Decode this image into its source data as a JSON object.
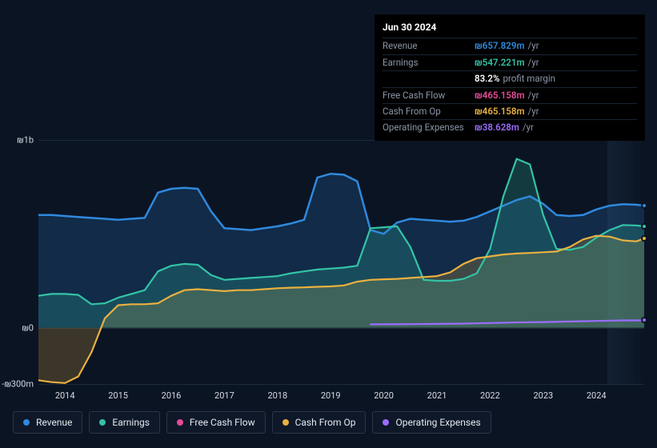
{
  "tooltip": {
    "date": "Jun 30 2024",
    "rows": [
      {
        "label": "Revenue",
        "value": "₪657.829m",
        "unit": "/yr",
        "color": "#2f89dd"
      },
      {
        "label": "Earnings",
        "value": "₪547.221m",
        "unit": "/yr",
        "color": "#34c3a6"
      },
      {
        "label": "",
        "value": "83.2%",
        "unit": "profit margin",
        "color": "#ffffff"
      },
      {
        "label": "Free Cash Flow",
        "value": "₪465.158m",
        "unit": "/yr",
        "color": "#e84a9a"
      },
      {
        "label": "Cash From Op",
        "value": "₪465.158m",
        "unit": "/yr",
        "color": "#eab040"
      },
      {
        "label": "Operating Expenses",
        "value": "₪38.628m",
        "unit": "/yr",
        "color": "#9a6dff"
      }
    ]
  },
  "chart": {
    "type": "area",
    "background_color": "#0b1423",
    "grid_color": "#1d2a3e",
    "y_axis": {
      "min": -300,
      "max": 1000,
      "ticks": [
        {
          "v": 1000,
          "label": "₪1b"
        },
        {
          "v": 0,
          "label": "₪0"
        },
        {
          "v": -300,
          "label": "-₪300m"
        }
      ]
    },
    "x_axis": {
      "min": 2013.5,
      "max": 2024.9,
      "ticks": [
        {
          "v": 2014,
          "label": "2014"
        },
        {
          "v": 2015,
          "label": "2015"
        },
        {
          "v": 2016,
          "label": "2016"
        },
        {
          "v": 2017,
          "label": "2017"
        },
        {
          "v": 2018,
          "label": "2018"
        },
        {
          "v": 2019,
          "label": "2019"
        },
        {
          "v": 2020,
          "label": "2020"
        },
        {
          "v": 2021,
          "label": "2021"
        },
        {
          "v": 2022,
          "label": "2022"
        },
        {
          "v": 2023,
          "label": "2023"
        },
        {
          "v": 2024,
          "label": "2024"
        }
      ]
    },
    "future_start": 2024.2,
    "series": [
      {
        "key": "revenue",
        "label": "Revenue",
        "color": "#2f89dd",
        "fill_opacity": 0.2,
        "line_width": 2.5,
        "area": true,
        "points": [
          [
            2013.5,
            600
          ],
          [
            2013.75,
            600
          ],
          [
            2014.0,
            595
          ],
          [
            2014.25,
            590
          ],
          [
            2014.5,
            585
          ],
          [
            2014.75,
            580
          ],
          [
            2015.0,
            575
          ],
          [
            2015.25,
            580
          ],
          [
            2015.5,
            585
          ],
          [
            2015.75,
            720
          ],
          [
            2016.0,
            740
          ],
          [
            2016.25,
            745
          ],
          [
            2016.5,
            740
          ],
          [
            2016.75,
            620
          ],
          [
            2017.0,
            530
          ],
          [
            2017.25,
            525
          ],
          [
            2017.5,
            520
          ],
          [
            2017.75,
            530
          ],
          [
            2018.0,
            540
          ],
          [
            2018.25,
            555
          ],
          [
            2018.5,
            575
          ],
          [
            2018.75,
            800
          ],
          [
            2019.0,
            820
          ],
          [
            2019.25,
            815
          ],
          [
            2019.5,
            780
          ],
          [
            2019.75,
            520
          ],
          [
            2020.0,
            500
          ],
          [
            2020.25,
            560
          ],
          [
            2020.5,
            580
          ],
          [
            2020.75,
            575
          ],
          [
            2021.0,
            570
          ],
          [
            2021.25,
            565
          ],
          [
            2021.5,
            570
          ],
          [
            2021.75,
            590
          ],
          [
            2022.0,
            620
          ],
          [
            2022.25,
            650
          ],
          [
            2022.5,
            680
          ],
          [
            2022.75,
            700
          ],
          [
            2023.0,
            660
          ],
          [
            2023.25,
            600
          ],
          [
            2023.5,
            595
          ],
          [
            2023.75,
            600
          ],
          [
            2024.0,
            630
          ],
          [
            2024.25,
            650
          ],
          [
            2024.5,
            658
          ],
          [
            2024.75,
            655
          ],
          [
            2024.9,
            650
          ]
        ],
        "end_dot": true
      },
      {
        "key": "earnings",
        "label": "Earnings",
        "color": "#34c3a6",
        "fill_opacity": 0.22,
        "line_width": 2.2,
        "area": true,
        "points": [
          [
            2013.5,
            170
          ],
          [
            2013.75,
            180
          ],
          [
            2014.0,
            180
          ],
          [
            2014.25,
            175
          ],
          [
            2014.5,
            125
          ],
          [
            2014.75,
            130
          ],
          [
            2015.0,
            160
          ],
          [
            2015.25,
            180
          ],
          [
            2015.5,
            200
          ],
          [
            2015.75,
            300
          ],
          [
            2016.0,
            330
          ],
          [
            2016.25,
            340
          ],
          [
            2016.5,
            335
          ],
          [
            2016.75,
            280
          ],
          [
            2017.0,
            255
          ],
          [
            2017.25,
            260
          ],
          [
            2017.5,
            265
          ],
          [
            2017.75,
            270
          ],
          [
            2018.0,
            275
          ],
          [
            2018.25,
            290
          ],
          [
            2018.5,
            300
          ],
          [
            2018.75,
            310
          ],
          [
            2019.0,
            315
          ],
          [
            2019.25,
            320
          ],
          [
            2019.5,
            330
          ],
          [
            2019.75,
            530
          ],
          [
            2020.0,
            535
          ],
          [
            2020.25,
            540
          ],
          [
            2020.5,
            430
          ],
          [
            2020.75,
            255
          ],
          [
            2021.0,
            250
          ],
          [
            2021.25,
            250
          ],
          [
            2021.5,
            260
          ],
          [
            2021.75,
            290
          ],
          [
            2022.0,
            420
          ],
          [
            2022.25,
            700
          ],
          [
            2022.5,
            900
          ],
          [
            2022.75,
            870
          ],
          [
            2023.0,
            600
          ],
          [
            2023.25,
            420
          ],
          [
            2023.5,
            415
          ],
          [
            2023.75,
            430
          ],
          [
            2024.0,
            480
          ],
          [
            2024.25,
            520
          ],
          [
            2024.5,
            547
          ],
          [
            2024.75,
            545
          ],
          [
            2024.9,
            540
          ]
        ],
        "end_dot": true
      },
      {
        "key": "fcf",
        "label": "Free Cash Flow",
        "color": "#e84a9a",
        "fill_opacity": 0.0,
        "line_width": 2.2,
        "area": false,
        "points": [
          [
            2019.75,
            20
          ],
          [
            2020.0,
            20
          ],
          [
            2020.5,
            20
          ],
          [
            2021.0,
            20
          ],
          [
            2021.5,
            20
          ],
          [
            2022.0,
            20
          ],
          [
            2022.5,
            20
          ],
          [
            2023.0,
            20
          ],
          [
            2023.5,
            20
          ],
          [
            2024.0,
            20
          ],
          [
            2024.5,
            465
          ],
          [
            2024.9,
            465
          ]
        ],
        "end_dot": false,
        "hidden_line": true
      },
      {
        "key": "cashop",
        "label": "Cash From Op",
        "color": "#eab040",
        "fill_opacity": 0.22,
        "line_width": 2.2,
        "area": true,
        "points": [
          [
            2013.5,
            -280
          ],
          [
            2013.75,
            -290
          ],
          [
            2014.0,
            -295
          ],
          [
            2014.25,
            -260
          ],
          [
            2014.5,
            -130
          ],
          [
            2014.75,
            50
          ],
          [
            2015.0,
            120
          ],
          [
            2015.25,
            125
          ],
          [
            2015.5,
            125
          ],
          [
            2015.75,
            130
          ],
          [
            2016.0,
            170
          ],
          [
            2016.25,
            200
          ],
          [
            2016.5,
            205
          ],
          [
            2016.75,
            200
          ],
          [
            2017.0,
            195
          ],
          [
            2017.25,
            200
          ],
          [
            2017.5,
            200
          ],
          [
            2017.75,
            205
          ],
          [
            2018.0,
            210
          ],
          [
            2018.25,
            213
          ],
          [
            2018.5,
            215
          ],
          [
            2018.75,
            218
          ],
          [
            2019.0,
            220
          ],
          [
            2019.25,
            225
          ],
          [
            2019.5,
            245
          ],
          [
            2019.75,
            255
          ],
          [
            2020.0,
            258
          ],
          [
            2020.25,
            260
          ],
          [
            2020.5,
            265
          ],
          [
            2020.75,
            270
          ],
          [
            2021.0,
            275
          ],
          [
            2021.25,
            295
          ],
          [
            2021.5,
            340
          ],
          [
            2021.75,
            370
          ],
          [
            2022.0,
            380
          ],
          [
            2022.25,
            390
          ],
          [
            2022.5,
            395
          ],
          [
            2022.75,
            398
          ],
          [
            2023.0,
            402
          ],
          [
            2023.25,
            406
          ],
          [
            2023.5,
            430
          ],
          [
            2023.75,
            470
          ],
          [
            2024.0,
            490
          ],
          [
            2024.25,
            485
          ],
          [
            2024.5,
            465
          ],
          [
            2024.75,
            460
          ],
          [
            2024.9,
            475
          ]
        ],
        "end_dot": true
      },
      {
        "key": "opex",
        "label": "Operating Expenses",
        "color": "#9a6dff",
        "fill_opacity": 0.0,
        "line_width": 2.2,
        "area": false,
        "points": [
          [
            2019.75,
            18
          ],
          [
            2020.0,
            18
          ],
          [
            2020.5,
            19
          ],
          [
            2021.0,
            20
          ],
          [
            2021.5,
            22
          ],
          [
            2022.0,
            25
          ],
          [
            2022.5,
            28
          ],
          [
            2023.0,
            30
          ],
          [
            2023.5,
            33
          ],
          [
            2024.0,
            36
          ],
          [
            2024.5,
            39
          ],
          [
            2024.9,
            39
          ]
        ],
        "end_dot": true
      }
    ]
  },
  "legend": [
    {
      "key": "revenue",
      "label": "Revenue",
      "color": "#2f89dd"
    },
    {
      "key": "earnings",
      "label": "Earnings",
      "color": "#34c3a6"
    },
    {
      "key": "fcf",
      "label": "Free Cash Flow",
      "color": "#e84a9a"
    },
    {
      "key": "cashop",
      "label": "Cash From Op",
      "color": "#eab040"
    },
    {
      "key": "opex",
      "label": "Operating Expenses",
      "color": "#9a6dff"
    }
  ]
}
